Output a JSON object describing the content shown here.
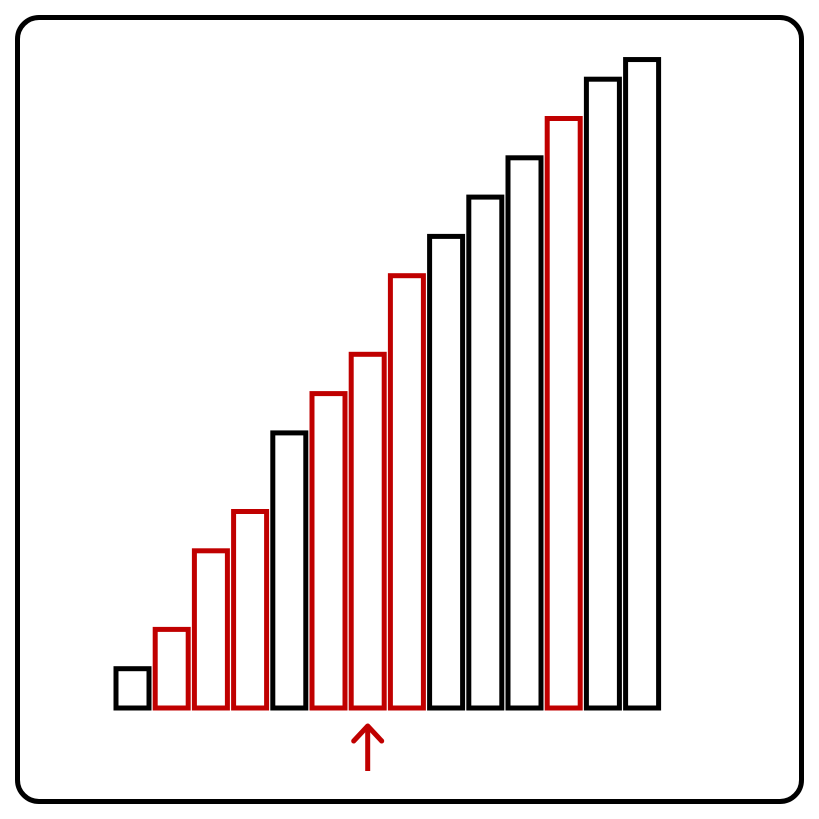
{
  "bars": [
    {
      "value": 1,
      "highlighted": false
    },
    {
      "value": 2,
      "highlighted": true
    },
    {
      "value": 4,
      "highlighted": true
    },
    {
      "value": 5,
      "highlighted": true
    },
    {
      "value": 7,
      "highlighted": false
    },
    {
      "value": 8,
      "highlighted": true
    },
    {
      "value": 9,
      "highlighted": true
    },
    {
      "value": 11,
      "highlighted": true
    },
    {
      "value": 12,
      "highlighted": false
    },
    {
      "value": 13,
      "highlighted": false
    },
    {
      "value": 14,
      "highlighted": false
    },
    {
      "value": 15,
      "highlighted": true
    },
    {
      "value": 16,
      "highlighted": false
    },
    {
      "value": 16.5,
      "highlighted": false
    }
  ],
  "pointer_index": 6,
  "colors": {
    "normal": "#000000",
    "highlight": "#c00000",
    "fill": "#ffffff"
  }
}
